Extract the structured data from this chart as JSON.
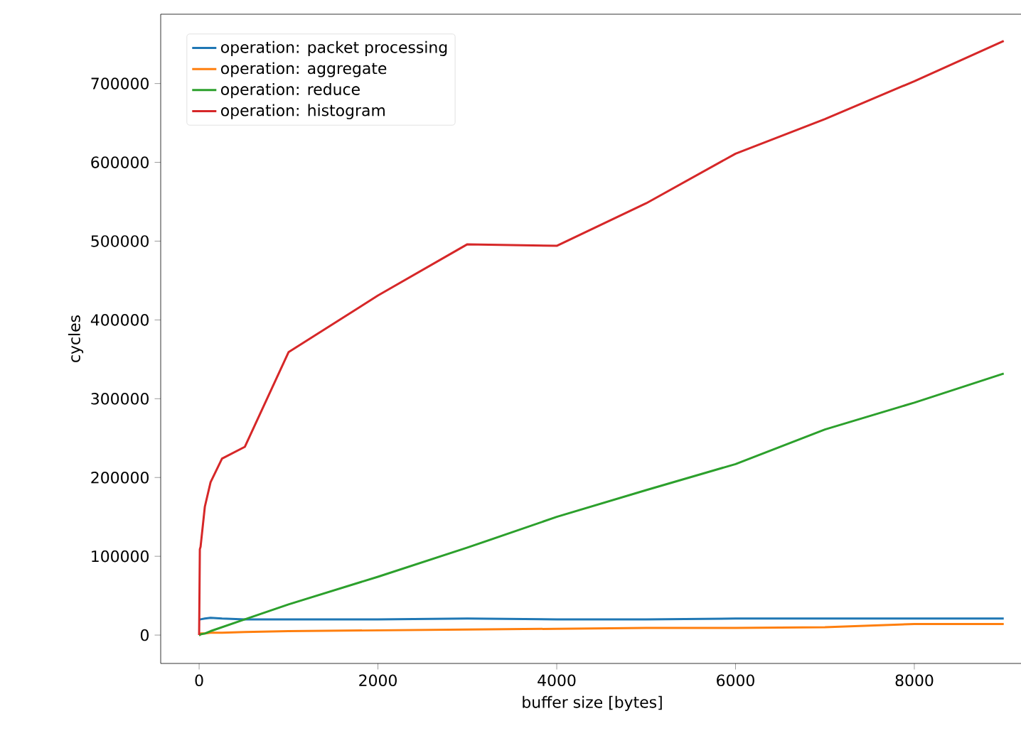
{
  "chart_data": {
    "type": "line",
    "xlabel": "buffer size [bytes]",
    "ylabel": "cycles",
    "x": [
      0,
      8,
      16,
      64,
      128,
      256,
      512,
      1000,
      2000,
      3000,
      4000,
      5000,
      6000,
      7000,
      8000,
      9000
    ],
    "series": [
      {
        "name": "operation: packet processing",
        "color": "#1f77b4",
        "values": [
          20000,
          20000,
          20000,
          21000,
          22000,
          21000,
          20000,
          20000,
          20000,
          21000,
          20000,
          20000,
          21000,
          21000,
          21000,
          21000
        ]
      },
      {
        "name": "operation: aggregate",
        "color": "#ff7f0e",
        "values": [
          1000,
          1000,
          2000,
          2000,
          3000,
          3000,
          4000,
          5000,
          6000,
          7000,
          8000,
          9000,
          9000,
          10000,
          14000,
          14000
        ]
      },
      {
        "name": "operation: reduce",
        "color": "#2ca02c",
        "values": [
          0,
          0,
          1000,
          2000,
          5000,
          10000,
          20000,
          39000,
          74000,
          111000,
          150000,
          184000,
          217000,
          261000,
          295000,
          332000
        ]
      },
      {
        "name": "operation: histogram",
        "color": "#d62728",
        "values": [
          0,
          109000,
          112000,
          163000,
          194000,
          224000,
          239000,
          359000,
          431000,
          496000,
          494000,
          548000,
          611000,
          655000,
          703000,
          754000
        ]
      }
    ],
    "xlim": [
      -430,
      9225
    ],
    "ylim": [
      -36000,
      788000
    ],
    "xticks": [
      0,
      2000,
      4000,
      6000,
      8000
    ],
    "yticks": [
      0,
      100000,
      200000,
      300000,
      400000,
      500000,
      600000,
      700000
    ],
    "legend": "top left",
    "grid": false
  }
}
